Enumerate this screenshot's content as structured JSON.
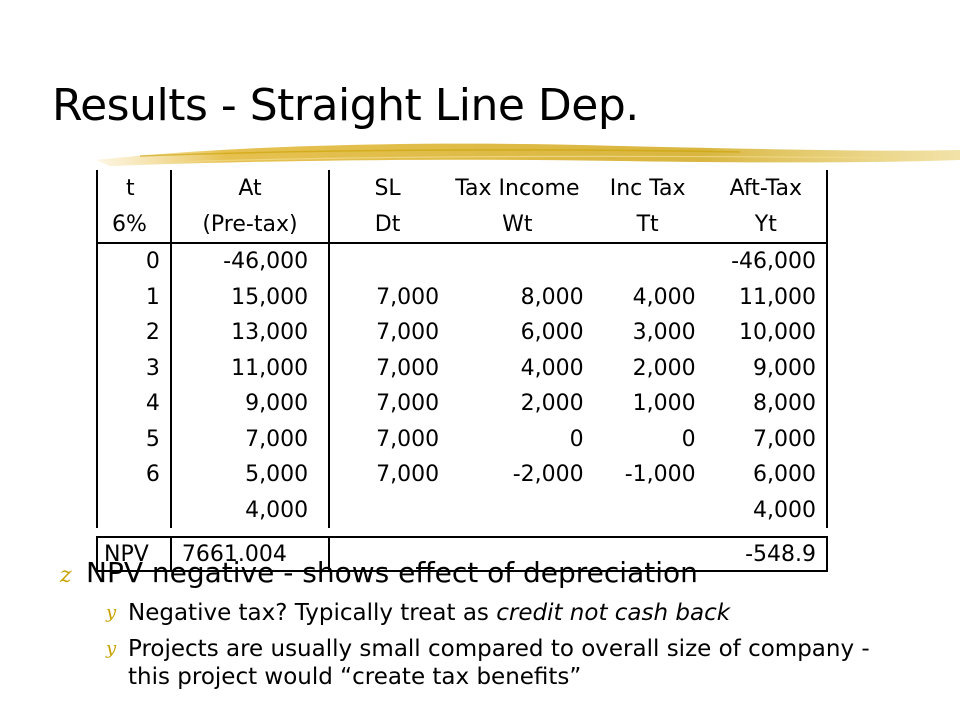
{
  "slide": {
    "title": "Results - Straight Line Dep."
  },
  "table": {
    "headers_row1": [
      "t",
      "At",
      "SL",
      "Tax Income",
      "Inc Tax",
      "Aft-Tax"
    ],
    "headers_row2": [
      "6%",
      "(Pre-tax)",
      "Dt",
      "Wt",
      "Tt",
      "Yt"
    ],
    "rows": [
      [
        "0",
        "-46,000",
        "",
        "",
        "",
        "-46,000"
      ],
      [
        "1",
        "15,000",
        "7,000",
        "8,000",
        "4,000",
        "11,000"
      ],
      [
        "2",
        "13,000",
        "7,000",
        "6,000",
        "3,000",
        "10,000"
      ],
      [
        "3",
        "11,000",
        "7,000",
        "4,000",
        "2,000",
        "9,000"
      ],
      [
        "4",
        "9,000",
        "7,000",
        "2,000",
        "1,000",
        "8,000"
      ],
      [
        "5",
        "7,000",
        "7,000",
        "0",
        "0",
        "7,000"
      ],
      [
        "6",
        "5,000",
        "7,000",
        "-2,000",
        "-1,000",
        "6,000"
      ],
      [
        "",
        "4,000",
        "",
        "",
        "",
        "4,000"
      ]
    ],
    "npv": {
      "label": "NPV",
      "pretax": "7661.004",
      "aftertax": "-548.9"
    }
  },
  "bullets": {
    "main": {
      "marker": "z",
      "text": "NPV negative - shows effect of depreciation"
    },
    "sub1": {
      "marker": "y",
      "text_before": "Negative tax?  Typically treat as ",
      "text_italic": "credit not cash back"
    },
    "sub2": {
      "marker": "y",
      "text": "Projects are usually small compared to overall size of company - this project would “create tax benefits”"
    }
  },
  "colors": {
    "accent": "#c9a200",
    "brush_stroke": "#d8b640"
  }
}
